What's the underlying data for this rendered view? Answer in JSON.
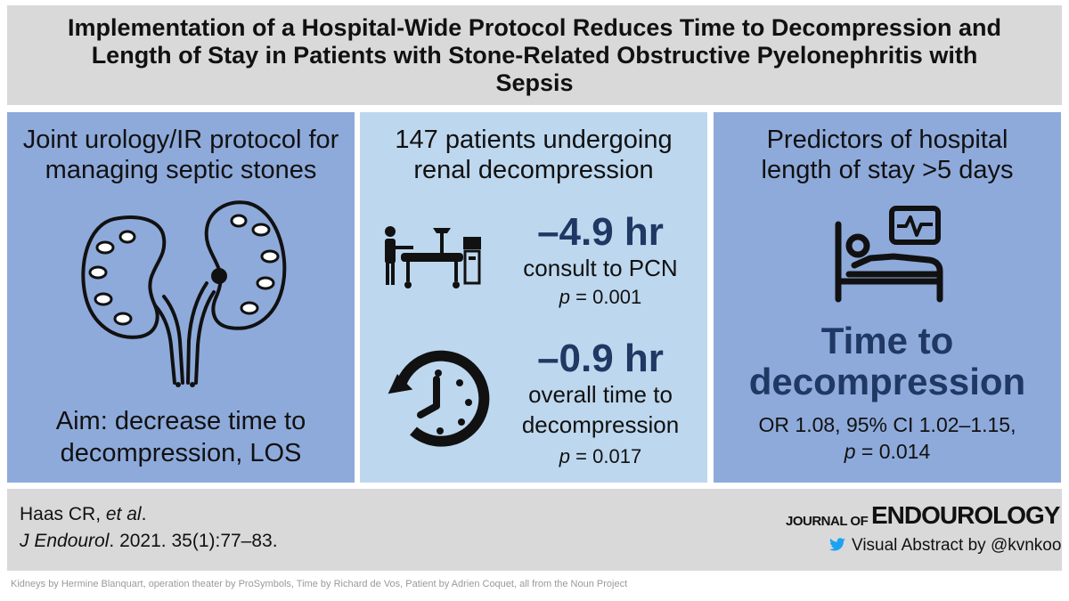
{
  "title": "Implementation of a Hospital-Wide Protocol Reduces Time to Decompression and Length of Stay in Patients with Stone-Related Obstructive Pyelonephritis with Sepsis",
  "left": {
    "heading_line1": "Joint urology/IR protocol for",
    "heading_line2": "managing septic stones",
    "aim_line1": "Aim: decrease time to",
    "aim_line2": "decompression, LOS"
  },
  "middle": {
    "heading_line1": "147 patients undergoing",
    "heading_line2": "renal decompression",
    "stat1_value": "–4.9 hr",
    "stat1_label": "consult to PCN",
    "stat1_p_label": "p",
    "stat1_p_value": " = 0.001",
    "stat2_value": "–0.9 hr",
    "stat2_label_line1": "overall time to",
    "stat2_label_line2": "decompression",
    "stat2_p_label": "p",
    "stat2_p_value": " = 0.017"
  },
  "right": {
    "heading_line1": "Predictors of hospital",
    "heading_line2": "length of stay >5 days",
    "predictor_line1": "Time to",
    "predictor_line2": "decompression",
    "stat_line1": "OR 1.08, 95% CI 1.02–1.15,",
    "stat_p_label": "p",
    "stat_p_value": " = 0.014"
  },
  "footer": {
    "authors": "Haas CR, ",
    "et_al": "et al",
    "authors_end": ".",
    "journal_abbrev": "J Endourol",
    "citation": ". 2021. 35(1):77–83.",
    "journal_small": "JOURNAL OF",
    "journal_big": "ENDOUROLOGY",
    "visual_abstract": "Visual Abstract by @kvnkoo"
  },
  "credits": "Kidneys by Hermine Blanquart, operation theater by ProSymbols, Time by Richard de Vos, Patient by Adrien Coquet, all from the Noun Project"
}
